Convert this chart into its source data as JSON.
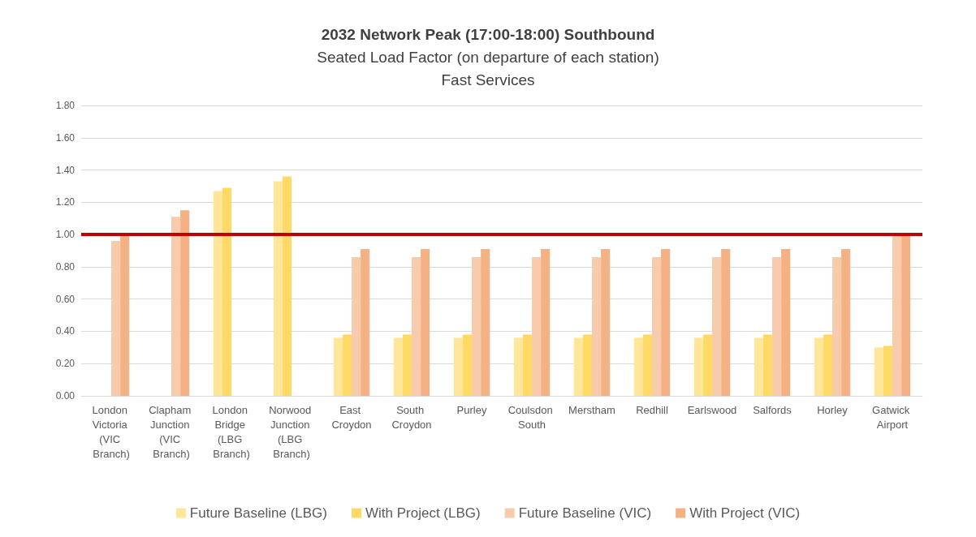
{
  "chart_data": {
    "type": "bar",
    "title": "2032 Network Peak (17:00-18:00) Southbound",
    "subtitle": "Seated Load Factor (on departure of each station)\nFast Services",
    "categories": [
      "London Victoria (VIC Branch)",
      "Clapham Junction (VIC Branch)",
      "London Bridge (LBG Branch)",
      "Norwood Junction (LBG Branch)",
      "East Croydon",
      "South Croydon",
      "Purley",
      "Coulsdon South",
      "Merstham",
      "Redhill",
      "Earlswood",
      "Salfords",
      "Horley",
      "Gatwick Airport"
    ],
    "series": [
      {
        "name": "Future Baseline (LBG)",
        "color": "#ffe699",
        "values": [
          null,
          null,
          1.27,
          1.33,
          0.36,
          0.36,
          0.36,
          0.36,
          0.36,
          0.36,
          0.36,
          0.36,
          0.36,
          0.3
        ]
      },
      {
        "name": "With Project (LBG)",
        "color": "#ffd966",
        "values": [
          null,
          null,
          1.29,
          1.36,
          0.38,
          0.38,
          0.38,
          0.38,
          0.38,
          0.38,
          0.38,
          0.38,
          0.38,
          0.31
        ]
      },
      {
        "name": "Future Baseline (VIC)",
        "color": "#f8cbad",
        "values": [
          0.96,
          1.11,
          null,
          null,
          0.86,
          0.86,
          0.86,
          0.86,
          0.86,
          0.86,
          0.86,
          0.86,
          0.86,
          0.99
        ]
      },
      {
        "name": "With Project (VIC)",
        "color": "#f4b183",
        "values": [
          0.99,
          1.15,
          null,
          null,
          0.91,
          0.91,
          0.91,
          0.91,
          0.91,
          0.91,
          0.91,
          0.91,
          0.91,
          1.0
        ]
      }
    ],
    "ylim": [
      0,
      1.8
    ],
    "yticks": [
      {
        "value": 0,
        "label": "0.00"
      },
      {
        "value": 0.2,
        "label": "0.20"
      },
      {
        "value": 0.4,
        "label": "0.40"
      },
      {
        "value": 0.6,
        "label": "0.60"
      },
      {
        "value": 0.8,
        "label": "0.80"
      },
      {
        "value": 1,
        "label": "1.00"
      },
      {
        "value": 1.2,
        "label": "1.20"
      },
      {
        "value": 1.4,
        "label": "1.40"
      },
      {
        "value": 1.6,
        "label": "1.60"
      },
      {
        "value": 1.8,
        "label": "1.80"
      }
    ],
    "ref_lines": [
      {
        "axis": "y",
        "value": 1,
        "color": "#c00000",
        "line_style": "solid"
      }
    ],
    "grid": "y",
    "legend": "bottom"
  }
}
